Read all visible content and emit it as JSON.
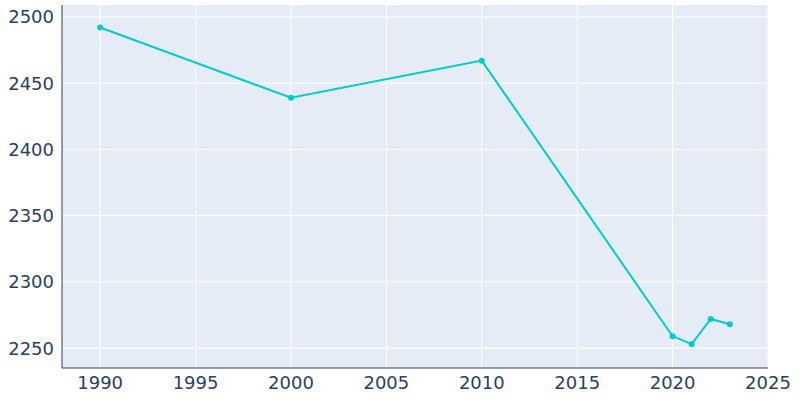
{
  "chart_data": {
    "type": "line",
    "x": [
      1990,
      2000,
      2010,
      2020,
      2021,
      2022,
      2023
    ],
    "values": [
      2492,
      2439,
      2467,
      2259,
      2253,
      2272,
      2268
    ],
    "color": "#00cccc",
    "marker": "circle",
    "xlim": [
      1988,
      2025
    ],
    "xticks": [
      1990,
      1995,
      2000,
      2005,
      2010,
      2015,
      2020,
      2025
    ],
    "ylim": [
      2235,
      2509
    ],
    "yticks": [
      2250,
      2300,
      2350,
      2400,
      2450,
      2500
    ],
    "grid": true
  }
}
